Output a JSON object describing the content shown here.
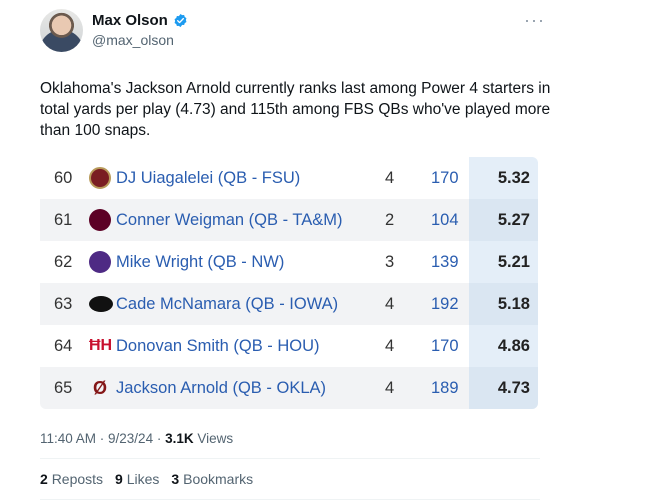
{
  "author": {
    "display_name": "Max Olson",
    "handle": "@max_olson",
    "verified_color": "#1d9bf0"
  },
  "tweet": {
    "text": "Oklahoma's Jackson Arnold currently ranks last among Power 4 starters in total yards per play (4.73) and 115th among FBS QBs who've played more than 100 snaps."
  },
  "table": {
    "rows": [
      {
        "rank": "60",
        "logo": "fsu-logo",
        "player": "DJ Uiagalelei (QB - FSU)",
        "games": "4",
        "plays": "170",
        "ypp": "5.32"
      },
      {
        "rank": "61",
        "logo": "tamu-logo",
        "player": "Conner Weigman (QB - TA&M)",
        "games": "2",
        "plays": "104",
        "ypp": "5.27"
      },
      {
        "rank": "62",
        "logo": "northwestern-logo",
        "player": "Mike Wright (QB - NW)",
        "games": "3",
        "plays": "139",
        "ypp": "5.21"
      },
      {
        "rank": "63",
        "logo": "iowa-logo",
        "player": "Cade McNamara (QB - IOWA)",
        "games": "4",
        "plays": "192",
        "ypp": "5.18"
      },
      {
        "rank": "64",
        "logo": "houston-logo",
        "player": "Donovan Smith (QB - HOU)",
        "games": "4",
        "plays": "170",
        "ypp": "4.86"
      },
      {
        "rank": "65",
        "logo": "oklahoma-logo",
        "player": "Jackson Arnold (QB - OKLA)",
        "games": "4",
        "plays": "189",
        "ypp": "4.73"
      }
    ]
  },
  "meta": {
    "time": "11:40 AM · 9/23/24 · ",
    "views_count": "3.1K",
    "views_label": " Views"
  },
  "stats": {
    "reposts_count": "2",
    "reposts_label": "Reposts",
    "likes_count": "9",
    "likes_label": "Likes",
    "bookmarks_count": "3",
    "bookmarks_label": "Bookmarks"
  }
}
